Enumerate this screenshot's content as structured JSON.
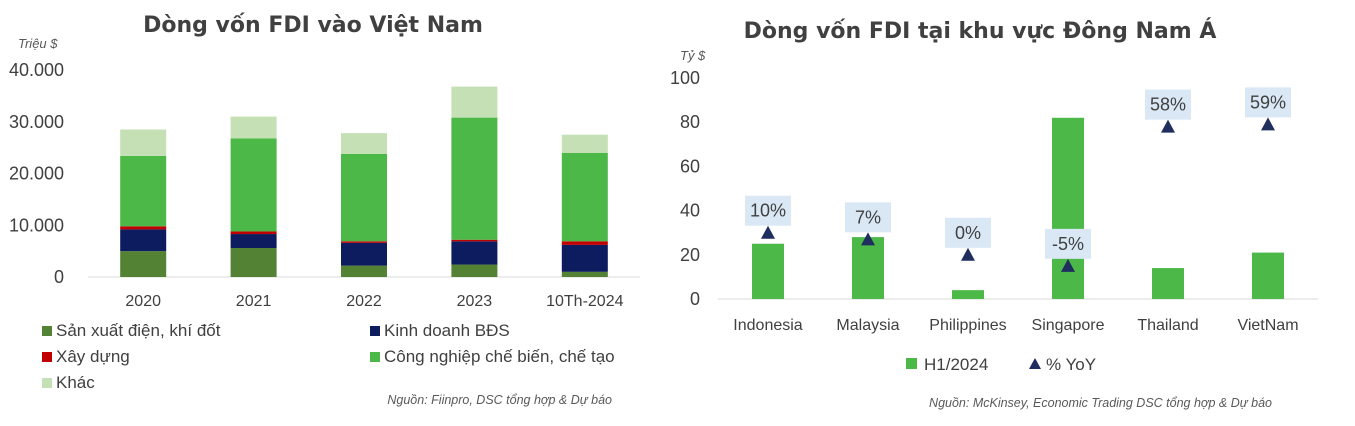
{
  "chart_data": [
    {
      "type": "bar",
      "stacked": true,
      "title": "Dòng vốn FDI vào Việt Nam",
      "unit": "Triệu $",
      "categories": [
        "2020",
        "2021",
        "2022",
        "2023",
        "10Th-2024"
      ],
      "y_ticks": [
        "0",
        "10.000",
        "20.000",
        "30.000",
        "40.000"
      ],
      "ylim": [
        0,
        40000
      ],
      "series": [
        {
          "name": "Sản xuất điện, khí đốt",
          "color": "#548235",
          "values": [
            5000,
            5600,
            2200,
            2400,
            1000
          ]
        },
        {
          "name": "Kinh doanh BĐS",
          "color": "#0d1c5e",
          "values": [
            4200,
            2700,
            4400,
            4500,
            5200
          ]
        },
        {
          "name": "Xây dựng",
          "color": "#c00000",
          "values": [
            600,
            500,
            300,
            300,
            700
          ]
        },
        {
          "name": "Công nghiệp chế biến, chế tạo",
          "color": "#4cb848",
          "values": [
            13600,
            18000,
            16900,
            23600,
            17100
          ]
        },
        {
          "name": "Khác",
          "color": "#c5e0b4",
          "values": [
            5100,
            4200,
            4000,
            6000,
            3500
          ]
        }
      ],
      "source": "Nguồn: Fiinpro, DSC tổng hợp & Dự báo"
    },
    {
      "type": "bar",
      "title": "Dòng vốn FDI tại khu vực Đông Nam Á",
      "unit": "Tỷ $",
      "categories": [
        "Indonesia",
        "Malaysia",
        "Philippines",
        "Singapore",
        "Thailand",
        "VietNam"
      ],
      "y_ticks": [
        "0",
        "20",
        "40",
        "60",
        "80",
        "100"
      ],
      "ylim": [
        0,
        100
      ],
      "series": [
        {
          "name": "H1/2024",
          "type": "bar",
          "color": "#4cb848",
          "values": [
            25,
            28,
            4,
            82,
            14,
            21
          ]
        },
        {
          "name": "% YoY",
          "type": "scatter",
          "marker": "triangle",
          "color": "#1f2d5f",
          "values": [
            30,
            27,
            20,
            15,
            78,
            79
          ],
          "data_labels": [
            "10%",
            "7%",
            "0%",
            "-5%",
            "58%",
            "59%"
          ]
        }
      ],
      "source": "Nguồn: McKinsey, Economic Trading DSC tổng hợp & Dự báo"
    }
  ]
}
